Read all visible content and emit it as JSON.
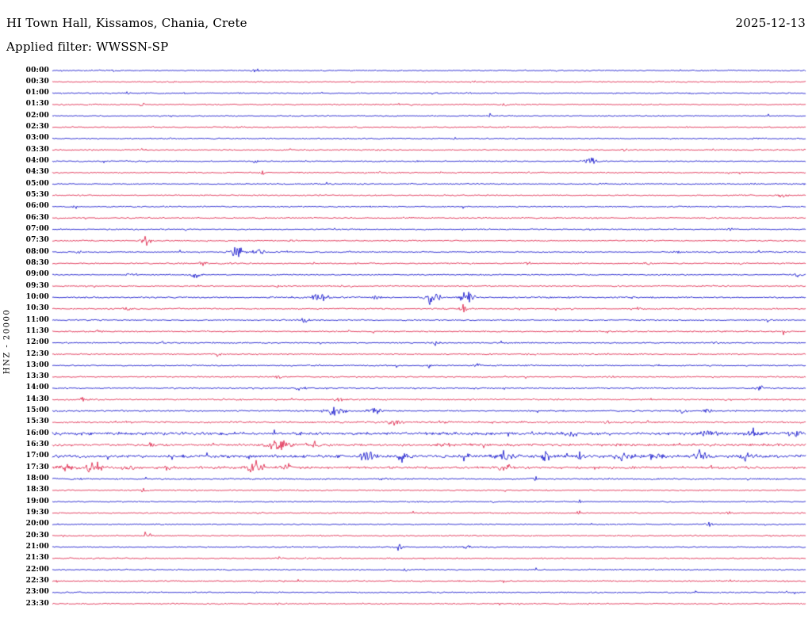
{
  "header": {
    "station_title": "HI Town Hall, Kissamos, Chania, Crete",
    "date": "2025-12-13",
    "filter_label": "Applied filter: WWSSN-SP"
  },
  "y_axis_label": "HNZ - 20000",
  "colors": {
    "blue": "#0000c8",
    "red": "#dc143c",
    "text": "#000000",
    "background": "#ffffff"
  },
  "chart_data": {
    "type": "line",
    "title": "HI Town Hall, Kissamos, Chania, Crete",
    "subtitle": "Applied filter: WWSSN-SP",
    "date": "2025-12-13",
    "channel_scale_label": "HNZ - 20000",
    "row_duration_minutes": 30,
    "xlabel": "",
    "ylabel": "HNZ - 20000",
    "legend": "off",
    "grid": "off",
    "description": "24-hour helicorder (day plot) of vertical-component seismic noise; 48 half-hour traces in alternating blue/red; 'events' mark visible amplitude bursts as fraction of row width with relative amplitude",
    "rows": [
      {
        "time": "00:00",
        "color": "blue",
        "noise": 1,
        "events": [
          {
            "at": 0.08,
            "w": 0.006,
            "amp": 2
          },
          {
            "at": 0.27,
            "w": 0.006,
            "amp": 2
          }
        ]
      },
      {
        "time": "00:30",
        "color": "red",
        "noise": 1,
        "events": [
          {
            "at": 0.4,
            "w": 0.006,
            "amp": 2.5
          },
          {
            "at": 0.56,
            "w": 0.005,
            "amp": 2
          }
        ]
      },
      {
        "time": "01:00",
        "color": "blue",
        "noise": 1,
        "events": [
          {
            "at": 0.1,
            "w": 0.005,
            "amp": 2
          }
        ]
      },
      {
        "time": "01:30",
        "color": "red",
        "noise": 1,
        "events": [
          {
            "at": 0.12,
            "w": 0.005,
            "amp": 2
          },
          {
            "at": 0.6,
            "w": 0.005,
            "amp": 2
          }
        ]
      },
      {
        "time": "02:00",
        "color": "blue",
        "noise": 1,
        "events": [
          {
            "at": 0.58,
            "w": 0.005,
            "amp": 2.5
          }
        ]
      },
      {
        "time": "02:30",
        "color": "red",
        "noise": 1,
        "events": [
          {
            "at": 0.25,
            "w": 0.005,
            "amp": 2
          }
        ]
      },
      {
        "time": "03:00",
        "color": "blue",
        "noise": 1,
        "events": []
      },
      {
        "time": "03:30",
        "color": "red",
        "noise": 1,
        "events": [
          {
            "at": 0.12,
            "w": 0.005,
            "amp": 2
          },
          {
            "at": 0.76,
            "w": 0.005,
            "amp": 2
          }
        ]
      },
      {
        "time": "04:00",
        "color": "blue",
        "noise": 1,
        "events": [
          {
            "at": 0.715,
            "w": 0.012,
            "amp": 5.5
          },
          {
            "at": 0.27,
            "w": 0.005,
            "amp": 2
          }
        ]
      },
      {
        "time": "04:30",
        "color": "red",
        "noise": 1,
        "events": [
          {
            "at": 0.28,
            "w": 0.005,
            "amp": 2
          }
        ]
      },
      {
        "time": "05:00",
        "color": "blue",
        "noise": 1,
        "events": [
          {
            "at": 0.93,
            "w": 0.006,
            "amp": 2.5
          }
        ]
      },
      {
        "time": "05:30",
        "color": "red",
        "noise": 1,
        "events": [
          {
            "at": 0.97,
            "w": 0.008,
            "amp": 3
          }
        ]
      },
      {
        "time": "06:00",
        "color": "blue",
        "noise": 1,
        "events": [
          {
            "at": 0.03,
            "w": 0.005,
            "amp": 2
          }
        ]
      },
      {
        "time": "06:30",
        "color": "red",
        "noise": 1,
        "events": [
          {
            "at": 0.47,
            "w": 0.006,
            "amp": 2.5
          }
        ]
      },
      {
        "time": "07:00",
        "color": "blue",
        "noise": 1,
        "events": [
          {
            "at": 0.9,
            "w": 0.005,
            "amp": 2
          }
        ]
      },
      {
        "time": "07:30",
        "color": "red",
        "noise": 1,
        "events": [
          {
            "at": 0.125,
            "w": 0.009,
            "amp": 6
          },
          {
            "at": 0.32,
            "w": 0.005,
            "amp": 2
          }
        ]
      },
      {
        "time": "08:00",
        "color": "blue",
        "noise": 1,
        "events": [
          {
            "at": 0.035,
            "w": 0.006,
            "amp": 3
          },
          {
            "at": 0.245,
            "w": 0.014,
            "amp": 7
          },
          {
            "at": 0.275,
            "w": 0.01,
            "amp": 5
          },
          {
            "at": 0.31,
            "w": 0.006,
            "amp": 3
          },
          {
            "at": 0.83,
            "w": 0.006,
            "amp": 3
          }
        ]
      },
      {
        "time": "08:30",
        "color": "red",
        "noise": 1,
        "events": [
          {
            "at": 0.2,
            "w": 0.008,
            "amp": 3
          },
          {
            "at": 0.63,
            "w": 0.006,
            "amp": 2.5
          },
          {
            "at": 0.79,
            "w": 0.006,
            "amp": 2.5
          }
        ]
      },
      {
        "time": "09:00",
        "color": "blue",
        "noise": 1,
        "events": [
          {
            "at": 0.105,
            "w": 0.008,
            "amp": 3
          },
          {
            "at": 0.19,
            "w": 0.01,
            "amp": 3
          },
          {
            "at": 0.99,
            "w": 0.006,
            "amp": 3
          }
        ]
      },
      {
        "time": "09:30",
        "color": "red",
        "noise": 1,
        "events": [
          {
            "at": 0.3,
            "w": 0.006,
            "amp": 2
          }
        ]
      },
      {
        "time": "10:00",
        "color": "blue",
        "noise": 1.2,
        "events": [
          {
            "at": 0.355,
            "w": 0.015,
            "amp": 5
          },
          {
            "at": 0.43,
            "w": 0.007,
            "amp": 3
          },
          {
            "at": 0.505,
            "w": 0.014,
            "amp": 8
          },
          {
            "at": 0.55,
            "w": 0.013,
            "amp": 9
          },
          {
            "at": 0.77,
            "w": 0.007,
            "amp": 3
          }
        ]
      },
      {
        "time": "10:30",
        "color": "red",
        "noise": 1.1,
        "events": [
          {
            "at": 0.545,
            "w": 0.005,
            "amp": 9
          },
          {
            "at": 0.1,
            "w": 0.006,
            "amp": 2.5
          },
          {
            "at": 0.78,
            "w": 0.006,
            "amp": 2.5
          }
        ]
      },
      {
        "time": "11:00",
        "color": "blue",
        "noise": 1,
        "events": [
          {
            "at": 0.335,
            "w": 0.01,
            "amp": 4
          },
          {
            "at": 0.95,
            "w": 0.006,
            "amp": 2.5
          }
        ]
      },
      {
        "time": "11:30",
        "color": "red",
        "noise": 1.1,
        "events": [
          {
            "at": 0.06,
            "w": 0.006,
            "amp": 2.5
          },
          {
            "at": 0.97,
            "w": 0.006,
            "amp": 3
          }
        ]
      },
      {
        "time": "12:00",
        "color": "blue",
        "noise": 1,
        "events": [
          {
            "at": 0.51,
            "w": 0.008,
            "amp": 3
          },
          {
            "at": 0.88,
            "w": 0.006,
            "amp": 2.5
          }
        ]
      },
      {
        "time": "12:30",
        "color": "red",
        "noise": 1,
        "events": [
          {
            "at": 0.22,
            "w": 0.006,
            "amp": 3
          }
        ]
      },
      {
        "time": "13:00",
        "color": "blue",
        "noise": 1,
        "events": [
          {
            "at": 0.5,
            "w": 0.007,
            "amp": 2.5
          },
          {
            "at": 0.565,
            "w": 0.007,
            "amp": 2.5
          },
          {
            "at": 0.8,
            "w": 0.006,
            "amp": 2
          }
        ]
      },
      {
        "time": "13:30",
        "color": "red",
        "noise": 1,
        "events": [
          {
            "at": 0.3,
            "w": 0.006,
            "amp": 2.5
          },
          {
            "at": 0.74,
            "w": 0.006,
            "amp": 2.5
          }
        ]
      },
      {
        "time": "14:00",
        "color": "blue",
        "noise": 1.1,
        "events": [
          {
            "at": 0.33,
            "w": 0.008,
            "amp": 3
          },
          {
            "at": 0.94,
            "w": 0.008,
            "amp": 3.5
          }
        ]
      },
      {
        "time": "14:30",
        "color": "red",
        "noise": 1.3,
        "events": [
          {
            "at": 0.38,
            "w": 0.008,
            "amp": 3.5
          },
          {
            "at": 0.04,
            "w": 0.006,
            "amp": 3
          }
        ]
      },
      {
        "time": "15:00",
        "color": "blue",
        "noise": 1.2,
        "events": [
          {
            "at": 0.375,
            "w": 0.016,
            "amp": 6
          },
          {
            "at": 0.425,
            "w": 0.012,
            "amp": 5
          },
          {
            "at": 0.835,
            "w": 0.008,
            "amp": 4
          },
          {
            "at": 0.87,
            "w": 0.008,
            "amp": 4
          }
        ]
      },
      {
        "time": "15:30",
        "color": "red",
        "noise": 1.4,
        "events": [
          {
            "at": 0.455,
            "w": 0.012,
            "amp": 4
          },
          {
            "at": 0.52,
            "w": 0.008,
            "amp": 3
          },
          {
            "at": 0.74,
            "w": 0.007,
            "amp": 3
          }
        ]
      },
      {
        "time": "16:00",
        "color": "blue",
        "noise": 2.2,
        "events": [
          {
            "at": 0.69,
            "w": 0.009,
            "amp": 4
          },
          {
            "at": 0.87,
            "w": 0.014,
            "amp": 5
          },
          {
            "at": 0.935,
            "w": 0.014,
            "amp": 5
          },
          {
            "at": 0.985,
            "w": 0.012,
            "amp": 5
          }
        ]
      },
      {
        "time": "16:30",
        "color": "red",
        "noise": 1.8,
        "events": [
          {
            "at": 0.13,
            "w": 0.008,
            "amp": 4
          },
          {
            "at": 0.3,
            "w": 0.02,
            "amp": 7
          },
          {
            "at": 0.345,
            "w": 0.012,
            "amp": 5
          },
          {
            "at": 0.52,
            "w": 0.008,
            "amp": 3
          }
        ]
      },
      {
        "time": "17:00",
        "color": "blue",
        "noise": 2.2,
        "events": [
          {
            "at": 0.42,
            "w": 0.014,
            "amp": 7
          },
          {
            "at": 0.465,
            "w": 0.012,
            "amp": 6
          },
          {
            "at": 0.55,
            "w": 0.01,
            "amp": 5
          },
          {
            "at": 0.6,
            "w": 0.013,
            "amp": 6
          },
          {
            "at": 0.655,
            "w": 0.008,
            "amp": 5
          },
          {
            "at": 0.7,
            "w": 0.008,
            "amp": 6
          },
          {
            "at": 0.755,
            "w": 0.013,
            "amp": 7
          },
          {
            "at": 0.8,
            "w": 0.012,
            "amp": 6
          },
          {
            "at": 0.86,
            "w": 0.01,
            "amp": 6
          },
          {
            "at": 0.92,
            "w": 0.008,
            "amp": 5
          }
        ]
      },
      {
        "time": "17:30",
        "color": "red",
        "noise": 1.8,
        "events": [
          {
            "at": 0.02,
            "w": 0.012,
            "amp": 6
          },
          {
            "at": 0.055,
            "w": 0.012,
            "amp": 7
          },
          {
            "at": 0.1,
            "w": 0.012,
            "amp": 5
          },
          {
            "at": 0.155,
            "w": 0.008,
            "amp": 4
          },
          {
            "at": 0.27,
            "w": 0.016,
            "amp": 7
          },
          {
            "at": 0.31,
            "w": 0.01,
            "amp": 5
          },
          {
            "at": 0.6,
            "w": 0.01,
            "amp": 6
          }
        ]
      },
      {
        "time": "18:00",
        "color": "blue",
        "noise": 1.2,
        "events": [
          {
            "at": 0.44,
            "w": 0.007,
            "amp": 3
          },
          {
            "at": 0.64,
            "w": 0.006,
            "amp": 3
          }
        ]
      },
      {
        "time": "18:30",
        "color": "red",
        "noise": 1,
        "events": [
          {
            "at": 0.12,
            "w": 0.006,
            "amp": 2.5
          }
        ]
      },
      {
        "time": "19:00",
        "color": "blue",
        "noise": 1,
        "events": [
          {
            "at": 0.7,
            "w": 0.005,
            "amp": 2
          }
        ]
      },
      {
        "time": "19:30",
        "color": "red",
        "noise": 1,
        "events": [
          {
            "at": 0.7,
            "w": 0.006,
            "amp": 3
          },
          {
            "at": 0.9,
            "w": 0.005,
            "amp": 2.5
          }
        ]
      },
      {
        "time": "20:00",
        "color": "blue",
        "noise": 1,
        "events": [
          {
            "at": 0.87,
            "w": 0.007,
            "amp": 3
          }
        ]
      },
      {
        "time": "20:30",
        "color": "red",
        "noise": 1,
        "events": [
          {
            "at": 0.125,
            "w": 0.007,
            "amp": 5
          }
        ]
      },
      {
        "time": "21:00",
        "color": "blue",
        "noise": 1,
        "events": [
          {
            "at": 0.46,
            "w": 0.008,
            "amp": 3.5
          },
          {
            "at": 0.55,
            "w": 0.006,
            "amp": 3
          }
        ]
      },
      {
        "time": "21:30",
        "color": "red",
        "noise": 1,
        "events": [
          {
            "at": 0.3,
            "w": 0.005,
            "amp": 2
          }
        ]
      },
      {
        "time": "22:00",
        "color": "blue",
        "noise": 1,
        "events": [
          {
            "at": 0.47,
            "w": 0.005,
            "amp": 2
          }
        ]
      },
      {
        "time": "22:30",
        "color": "red",
        "noise": 1,
        "events": [
          {
            "at": 0.6,
            "w": 0.005,
            "amp": 2
          }
        ]
      },
      {
        "time": "23:00",
        "color": "blue",
        "noise": 1,
        "events": [
          {
            "at": 0.85,
            "w": 0.007,
            "amp": 3
          }
        ]
      },
      {
        "time": "23:30",
        "color": "red",
        "noise": 1,
        "events": [
          {
            "at": 0.3,
            "w": 0.005,
            "amp": 2
          }
        ]
      }
    ]
  }
}
